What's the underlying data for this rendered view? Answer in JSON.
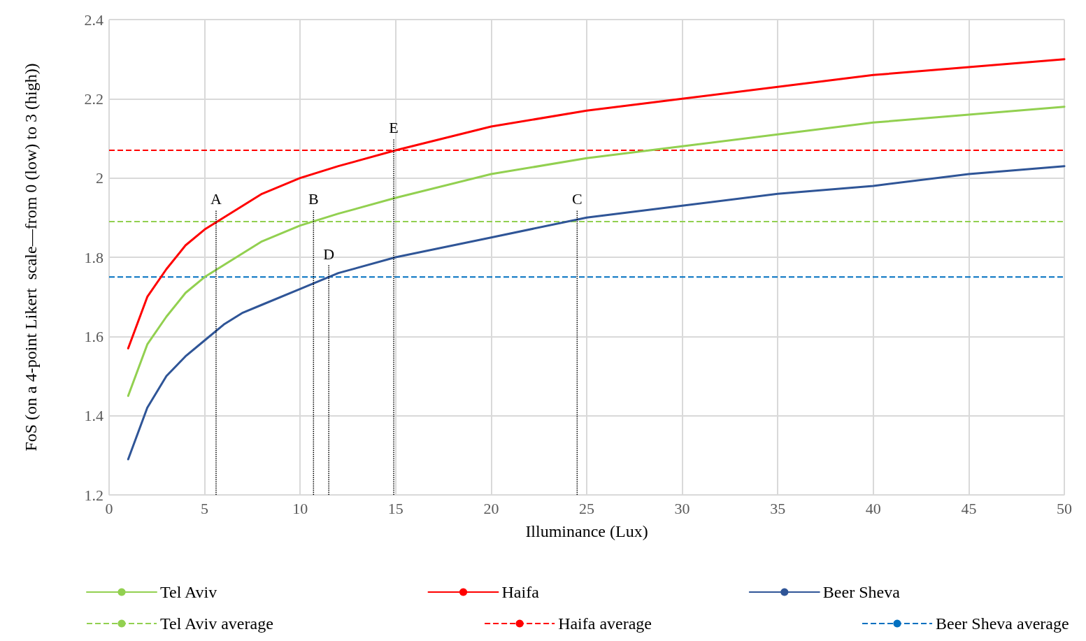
{
  "chart_data": {
    "type": "line",
    "xlabel": "Illuminance (Lux)",
    "ylabel": "FoS (on a 4-point Likert  scale—from 0 (low) to 3 (high))",
    "x": [
      1,
      2,
      3,
      4,
      5,
      6,
      7,
      8,
      10,
      12,
      15,
      20,
      25,
      30,
      35,
      40,
      45,
      50
    ],
    "series": [
      {
        "name": "Tel Aviv",
        "color": "#92d050",
        "values": [
          1.45,
          1.58,
          1.65,
          1.71,
          1.75,
          1.78,
          1.81,
          1.84,
          1.88,
          1.91,
          1.95,
          2.01,
          2.05,
          2.08,
          2.11,
          2.14,
          2.16,
          2.18
        ]
      },
      {
        "name": "Haifa",
        "color": "#ff0000",
        "values": [
          1.57,
          1.7,
          1.77,
          1.83,
          1.87,
          1.9,
          1.93,
          1.96,
          2.0,
          2.03,
          2.07,
          2.13,
          2.17,
          2.2,
          2.23,
          2.26,
          2.28,
          2.3
        ]
      },
      {
        "name": "Beer Sheva",
        "color": "#2f5597",
        "values": [
          1.29,
          1.42,
          1.5,
          1.55,
          1.59,
          1.63,
          1.66,
          1.68,
          1.72,
          1.76,
          1.8,
          1.85,
          1.9,
          1.93,
          1.96,
          1.98,
          2.01,
          2.03
        ]
      }
    ],
    "ref_lines": [
      {
        "axis": "y",
        "value": 1.89,
        "label": "Tel Aviv average",
        "color": "#92d050",
        "line_style": "dashed"
      },
      {
        "axis": "y",
        "value": 2.07,
        "label": "Haifa average",
        "color": "#ff0000",
        "line_style": "dashed"
      },
      {
        "axis": "y",
        "value": 1.75,
        "label": "Beer Sheva average",
        "color": "#0070c0",
        "line_style": "dashed"
      }
    ],
    "annotations": [
      {
        "text": "A",
        "x": 5.6,
        "y": 1.89
      },
      {
        "text": "B",
        "x": 10.7,
        "y": 1.89
      },
      {
        "text": "C",
        "x": 24.5,
        "y": 1.89
      },
      {
        "text": "D",
        "x": 11.5,
        "y": 1.75
      },
      {
        "text": "E",
        "x": 14.9,
        "y": 2.07
      }
    ],
    "xlim": [
      0,
      50
    ],
    "xticks": [
      0,
      5,
      10,
      15,
      20,
      25,
      30,
      35,
      40,
      45,
      50
    ],
    "ylim": [
      1.2,
      2.4
    ],
    "yticks": [
      1.2,
      1.4,
      1.6,
      1.8,
      2,
      2.2,
      2.4
    ],
    "grid": true,
    "legend": "bottom",
    "marker": "none",
    "line_style": "solid"
  }
}
